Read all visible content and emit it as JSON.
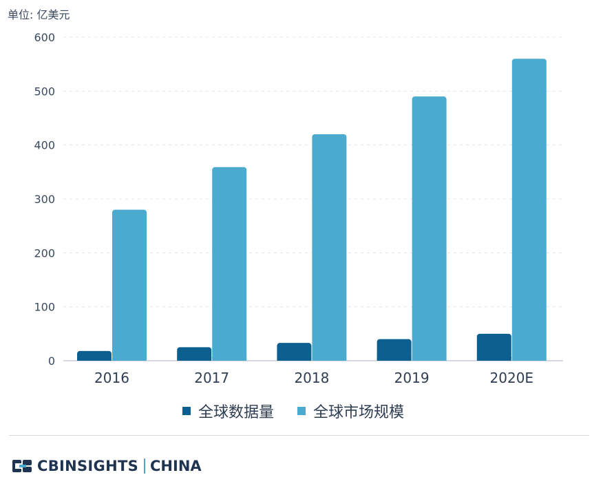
{
  "unit_label": "单位: 亿美元",
  "colors": {
    "series_1": "#0d5f8f",
    "series_2": "#4aabcf",
    "grid": "#e3e7ec",
    "axis": "#c9ced6"
  },
  "chart_data": {
    "type": "bar",
    "categories": [
      "2016",
      "2017",
      "2018",
      "2019",
      "2020E"
    ],
    "series": [
      {
        "name": "全球数据量",
        "values": [
          18,
          25,
          33,
          40,
          50
        ]
      },
      {
        "name": "全球市场规模",
        "values": [
          280,
          359,
          420,
          490,
          560
        ]
      }
    ],
    "title": "",
    "xlabel": "",
    "ylabel": "单位: 亿美元",
    "ylim": [
      0,
      600
    ],
    "yticks": [
      "0",
      "100",
      "200",
      "300",
      "400",
      "500",
      "600"
    ],
    "grid": true,
    "legend_position": "bottom"
  },
  "legend": {
    "items": [
      {
        "label": "全球数据量"
      },
      {
        "label": "全球市场规模"
      }
    ]
  },
  "brand": {
    "name": "CBINSIGHTS",
    "sub": "CHINA",
    "logo_icon": "cb-logo-icon"
  }
}
